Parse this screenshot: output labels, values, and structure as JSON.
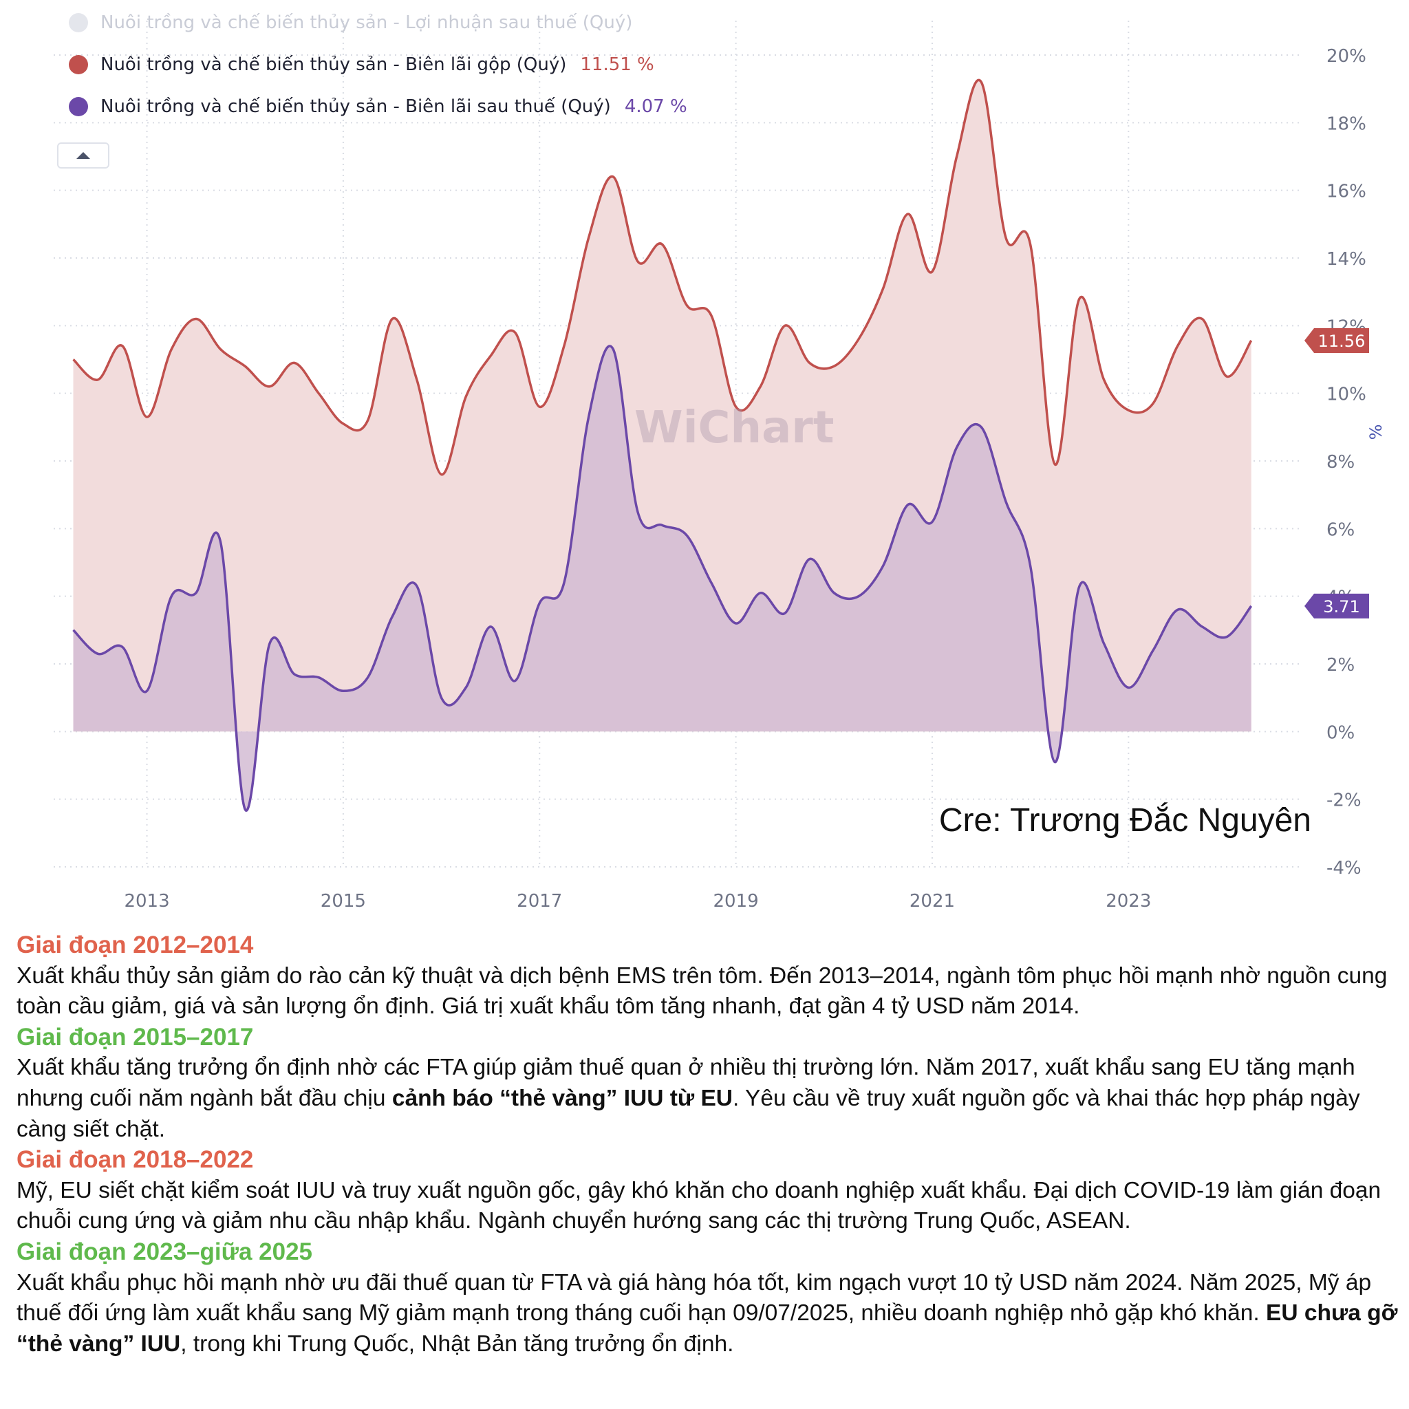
{
  "chart_data": {
    "type": "area",
    "ylabel": "%",
    "ylim": [
      -4,
      20
    ],
    "y_ticks": [
      "20%",
      "18%",
      "16%",
      "14%",
      "12%",
      "10%",
      "8%",
      "6%",
      "4%",
      "2%",
      "0%",
      "-2%",
      "-4%"
    ],
    "y_tick_values": [
      20,
      18,
      16,
      14,
      12,
      10,
      8,
      6,
      4,
      2,
      0,
      -2,
      -4
    ],
    "x_ticks": [
      "2013",
      "2015",
      "2017",
      "2019",
      "2021",
      "2023"
    ],
    "x_tick_values": [
      2013,
      2015,
      2017,
      2019,
      2021,
      2023
    ],
    "xlim": [
      2012.05,
      2024.75
    ],
    "grid": true,
    "legend_placement": "top-left",
    "series": [
      {
        "name": "Nuôi trồng và chế biến thủy sản - Lợi nhuận sau thuế (Quý)",
        "value_label": "",
        "color": "#d0d3dc",
        "hidden": true,
        "values": []
      },
      {
        "name": "Nuôi trồng và chế biến thủy sản - Biên lãi gộp (Quý)",
        "value_label": "11.51 %",
        "end_label": "11.56",
        "color": "#c0504d",
        "fill": "#f2dcdc",
        "x": [
          2012.25,
          2012.5,
          2012.75,
          2013.0,
          2013.25,
          2013.5,
          2013.75,
          2014.0,
          2014.25,
          2014.5,
          2014.75,
          2015.0,
          2015.25,
          2015.5,
          2015.75,
          2016.0,
          2016.25,
          2016.5,
          2016.75,
          2017.0,
          2017.25,
          2017.5,
          2017.75,
          2018.0,
          2018.25,
          2018.5,
          2018.75,
          2019.0,
          2019.25,
          2019.5,
          2019.75,
          2020.0,
          2020.25,
          2020.5,
          2020.75,
          2021.0,
          2021.25,
          2021.5,
          2021.75,
          2022.0,
          2022.25,
          2022.5,
          2022.75,
          2023.0,
          2023.25,
          2023.5,
          2023.75,
          2024.0,
          2024.25
        ],
        "values": [
          11.0,
          10.4,
          11.4,
          9.3,
          11.3,
          12.2,
          11.3,
          10.8,
          10.2,
          10.9,
          10.0,
          9.1,
          9.2,
          12.2,
          10.4,
          7.6,
          9.9,
          11.1,
          11.8,
          9.6,
          11.4,
          14.6,
          16.4,
          13.9,
          14.4,
          12.6,
          12.3,
          9.6,
          10.2,
          12.0,
          10.9,
          10.8,
          11.6,
          13.1,
          15.3,
          13.6,
          17.0,
          19.2,
          14.6,
          14.4,
          7.9,
          12.8,
          10.4,
          9.5,
          9.7,
          11.4,
          12.2,
          10.5,
          11.56
        ]
      },
      {
        "name": "Nuôi trồng và chế biến thủy sản - Biên lãi sau thuế (Quý)",
        "value_label": "4.07 %",
        "end_label": "3.71",
        "color": "#6b48a8",
        "fill": "#d3bcd3",
        "x": [
          2012.25,
          2012.5,
          2012.75,
          2013.0,
          2013.25,
          2013.5,
          2013.75,
          2014.0,
          2014.25,
          2014.5,
          2014.75,
          2015.0,
          2015.25,
          2015.5,
          2015.75,
          2016.0,
          2016.25,
          2016.5,
          2016.75,
          2017.0,
          2017.25,
          2017.5,
          2017.75,
          2018.0,
          2018.25,
          2018.5,
          2018.75,
          2019.0,
          2019.25,
          2019.5,
          2019.75,
          2020.0,
          2020.25,
          2020.5,
          2020.75,
          2021.0,
          2021.25,
          2021.5,
          2021.75,
          2022.0,
          2022.25,
          2022.5,
          2022.75,
          2023.0,
          2023.25,
          2023.5,
          2023.75,
          2024.0,
          2024.25
        ],
        "values": [
          3.0,
          2.3,
          2.5,
          1.2,
          4.0,
          4.1,
          5.6,
          -2.3,
          2.6,
          1.7,
          1.6,
          1.2,
          1.6,
          3.4,
          4.3,
          1.0,
          1.3,
          3.1,
          1.5,
          3.8,
          4.4,
          9.3,
          11.3,
          6.5,
          6.1,
          5.8,
          4.4,
          3.2,
          4.1,
          3.5,
          5.1,
          4.1,
          4.0,
          4.9,
          6.7,
          6.2,
          8.4,
          9.0,
          6.8,
          4.9,
          -0.9,
          4.3,
          2.6,
          1.3,
          2.4,
          3.6,
          3.1,
          2.8,
          3.71
        ]
      }
    ]
  },
  "watermark": "WiChart",
  "credit": "Cre: Trương Đắc Nguyên",
  "notes": [
    {
      "heading": "Giai đoạn 2012–2014",
      "color": "red",
      "body": [
        {
          "t": "Xuất khẩu thủy sản giảm do rào cản kỹ thuật và dịch bệnh EMS trên tôm. Đến 2013–2014, ngành tôm phục hồi mạnh nhờ nguồn cung toàn cầu giảm, giá và sản lượng ổn định. Giá trị xuất khẩu tôm tăng nhanh, đạt gần 4 tỷ USD năm 2014."
        }
      ]
    },
    {
      "heading": "Giai đoạn 2015–2017",
      "color": "green",
      "body": [
        {
          "t": "Xuất khẩu tăng trưởng ổn định nhờ các FTA giúp giảm thuế quan ở nhiều thị trường lớn. Năm 2017, xuất khẩu sang EU tăng mạnh nhưng cuối năm ngành bắt đầu chịu "
        },
        {
          "t": "cảnh báo “thẻ vàng” IUU từ EU",
          "b": true
        },
        {
          "t": ". Yêu cầu về truy xuất nguồn gốc và khai thác hợp pháp ngày càng siết chặt."
        }
      ]
    },
    {
      "heading": "Giai đoạn 2018–2022",
      "color": "red",
      "body": [
        {
          "t": "Mỹ, EU siết chặt kiểm soát IUU và truy xuất nguồn gốc, gây khó khăn cho doanh nghiệp xuất khẩu. Đại dịch COVID-19 làm gián đoạn chuỗi cung ứng và giảm nhu cầu nhập khẩu. Ngành chuyển hướng sang các thị trường Trung Quốc, ASEAN."
        }
      ]
    },
    {
      "heading": "Giai đoạn 2023–giữa 2025",
      "color": "green",
      "body": [
        {
          "t": "Xuất khẩu phục hồi mạnh nhờ ưu đãi thuế quan từ FTA và giá hàng hóa tốt, kim ngạch vượt 10 tỷ USD năm 2024. Năm 2025, Mỹ áp thuế đối ứng làm xuất khẩu sang Mỹ giảm mạnh trong tháng cuối hạn 09/07/2025, nhiều doanh nghiệp nhỏ gặp khó khăn. "
        },
        {
          "t": "EU chưa gỡ “thẻ vàng” IUU",
          "b": true
        },
        {
          "t": ", trong khi Trung Quốc, Nhật Bản tăng trưởng ổn định."
        }
      ]
    }
  ]
}
